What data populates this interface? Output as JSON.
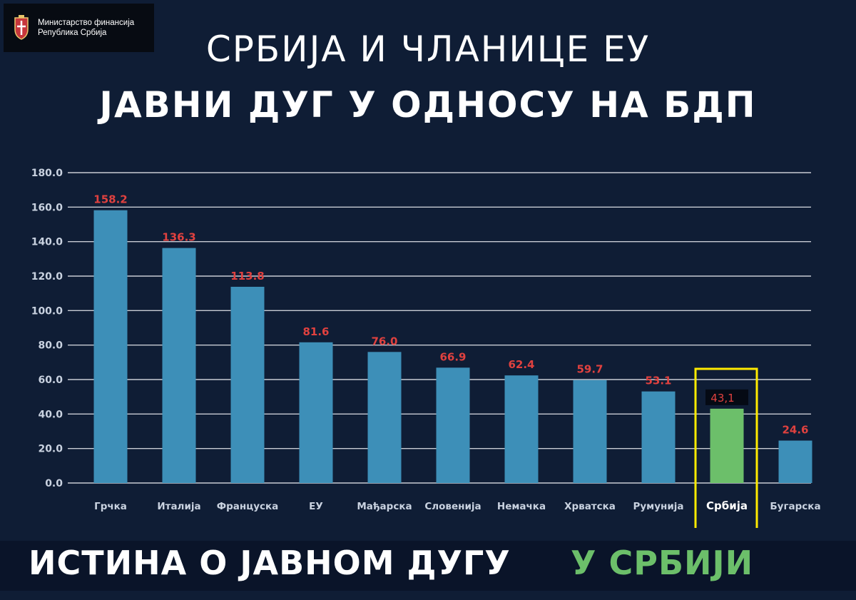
{
  "logo": {
    "line1": "Министарство финансија",
    "line2": "Република Србија"
  },
  "title": {
    "line1": "СРБИЈА И ЧЛАНИЦЕ ЕУ",
    "line2": "ЈАВНИ ДУГ У ОДНОСУ НА БДП"
  },
  "banner": {
    "part1": "ИСТИНА О ЈАВНОМ ДУГУ",
    "part2": "У СРБИЈИ"
  },
  "colors": {
    "bar": "#3d8fb8",
    "highlight_bar": "#6cbf6a",
    "value_label": "#e0413f",
    "highlight_box": "#ffeb00",
    "grid": "#c8ccd4",
    "axis_text": "#c9d2e0"
  },
  "chart_data": {
    "type": "bar",
    "categories": [
      "Грчка",
      "Италија",
      "Француска",
      "ЕУ",
      "Мађарска",
      "Словенија",
      "Немачка",
      "Хрватска",
      "Румунија",
      "Србија",
      "Бугарска"
    ],
    "values": [
      158.2,
      136.3,
      113.8,
      81.6,
      76.0,
      66.9,
      62.4,
      59.7,
      53.1,
      43.1,
      24.6
    ],
    "value_labels": [
      "158.2",
      "136.3",
      "113.8",
      "81.6",
      "76.0",
      "66.9",
      "62.4",
      "59.7",
      "53.1",
      "43,1",
      "24.6"
    ],
    "highlight_index": 9,
    "yticks": [
      "0.0",
      "20.0",
      "40.0",
      "60.0",
      "80.0",
      "100.0",
      "120.0",
      "140.0",
      "160.0",
      "180.0"
    ],
    "ylim": [
      0,
      180
    ],
    "grid": true
  }
}
